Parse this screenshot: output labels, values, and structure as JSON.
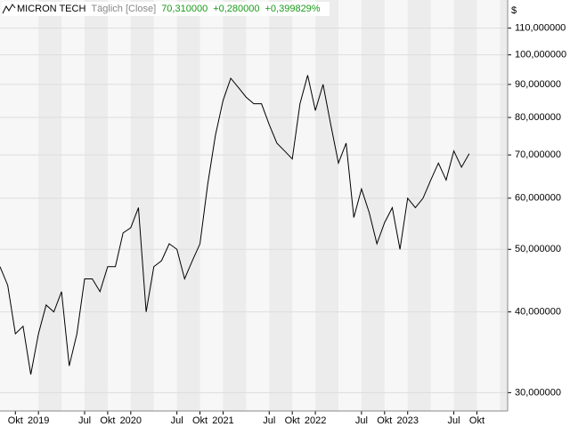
{
  "chart_data": {
    "type": "line",
    "title": "MICRON TECH",
    "subtitle": "Täglich [Close]",
    "header_values": [
      "70,310000",
      "+0,280000",
      "+0,399829%"
    ],
    "y_unit": "$",
    "log_scale": true,
    "grid": true,
    "x": [
      "2018-08",
      "2018-09",
      "2018-10",
      "2018-11",
      "2018-12",
      "2019-01",
      "2019-02",
      "2019-03",
      "2019-04",
      "2019-05",
      "2019-06",
      "2019-07",
      "2019-08",
      "2019-09",
      "2019-10",
      "2019-11",
      "2019-12",
      "2020-01",
      "2020-02",
      "2020-03",
      "2020-04",
      "2020-05",
      "2020-06",
      "2020-07",
      "2020-08",
      "2020-09",
      "2020-10",
      "2020-11",
      "2020-12",
      "2021-01",
      "2021-02",
      "2021-03",
      "2021-04",
      "2021-05",
      "2021-06",
      "2021-07",
      "2021-08",
      "2021-09",
      "2021-10",
      "2021-11",
      "2021-12",
      "2022-01",
      "2022-02",
      "2022-03",
      "2022-04",
      "2022-05",
      "2022-06",
      "2022-07",
      "2022-08",
      "2022-09",
      "2022-10",
      "2022-11",
      "2022-12",
      "2023-01",
      "2023-02",
      "2023-03",
      "2023-04",
      "2023-05",
      "2023-06",
      "2023-07",
      "2023-08",
      "2023-09"
    ],
    "series": [
      {
        "name": "MICRON TECH",
        "color": "#000000",
        "values": [
          47,
          44,
          37,
          38,
          32,
          37,
          41,
          40,
          43,
          33,
          37,
          45,
          45,
          43,
          47,
          47,
          53,
          54,
          58,
          40,
          47,
          48,
          51,
          50,
          45,
          48,
          51,
          63,
          75,
          85,
          92,
          89,
          86,
          84,
          84,
          78,
          73,
          71,
          69,
          84,
          93,
          82,
          90,
          78,
          68,
          73,
          56,
          62,
          57,
          51,
          55,
          58,
          50,
          60,
          58,
          60,
          64,
          68,
          64,
          71,
          67,
          70.31
        ]
      }
    ],
    "xlim": [
      "2018-08",
      "2024-02"
    ],
    "ylim": [
      28.1,
      121.6
    ],
    "xticks": [
      {
        "value": "2018-10",
        "label": "Okt"
      },
      {
        "value": "2019-01",
        "label": "2019"
      },
      {
        "value": "2019-07",
        "label": "Jul"
      },
      {
        "value": "2019-10",
        "label": "Okt"
      },
      {
        "value": "2020-01",
        "label": "2020"
      },
      {
        "value": "2020-07",
        "label": "Jul"
      },
      {
        "value": "2020-10",
        "label": "Okt"
      },
      {
        "value": "2021-01",
        "label": "2021"
      },
      {
        "value": "2021-07",
        "label": "Jul"
      },
      {
        "value": "2021-10",
        "label": "Okt"
      },
      {
        "value": "2022-01",
        "label": "2022"
      },
      {
        "value": "2022-07",
        "label": "Jul"
      },
      {
        "value": "2022-10",
        "label": "Okt"
      },
      {
        "value": "2023-01",
        "label": "2023"
      },
      {
        "value": "2023-07",
        "label": "Jul"
      },
      {
        "value": "2023-10",
        "label": "Okt"
      }
    ],
    "yticks": [
      {
        "value": 30,
        "label": "30,000000"
      },
      {
        "value": 40,
        "label": "40,000000"
      },
      {
        "value": 50,
        "label": "50,000000"
      },
      {
        "value": 60,
        "label": "60,000000"
      },
      {
        "value": 70,
        "label": "70,000000"
      },
      {
        "value": 80,
        "label": "80,000000"
      },
      {
        "value": 90,
        "label": "90,000000"
      },
      {
        "value": 100,
        "label": "100,000000"
      },
      {
        "value": 110,
        "label": "110,000000"
      }
    ]
  }
}
